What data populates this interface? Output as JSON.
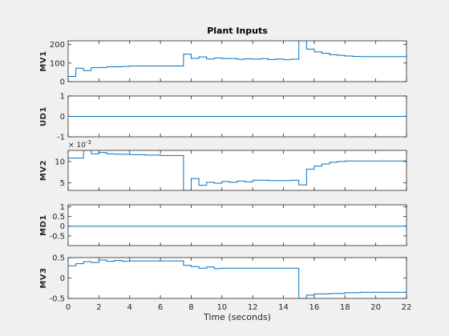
{
  "figure": {
    "background": "#f0f0f0",
    "axes_background": "#ffffff",
    "line_color": "#0072bd",
    "axis_color": "#262626"
  },
  "chart_data": [
    {
      "type": "line",
      "ylabel": "MV1",
      "title": "Plant Inputs",
      "xlim": [
        0,
        22
      ],
      "ylim": [
        0,
        220
      ],
      "yticks": [
        0,
        100,
        200
      ],
      "ytick_labels": [
        "0",
        "100",
        "200"
      ],
      "step": true,
      "series": [
        {
          "x": [
            0,
            0.5,
            1,
            1.5,
            2,
            2.5,
            3,
            3.5,
            4,
            7.5,
            8,
            8.5,
            9,
            9.5,
            10,
            10.5,
            11,
            11.5,
            12,
            12.5,
            13,
            13.5,
            14,
            14.5,
            15,
            15.5,
            16,
            16.5,
            17,
            17.5,
            18,
            18.5,
            19,
            22
          ],
          "y": [
            28,
            72,
            60,
            75,
            76,
            79,
            80,
            82,
            84,
            148,
            125,
            133,
            122,
            127,
            124,
            124,
            120,
            123,
            121,
            124,
            119,
            122,
            118,
            121,
            225,
            175,
            160,
            153,
            145,
            142,
            138,
            136,
            135,
            135
          ]
        }
      ]
    },
    {
      "type": "line",
      "ylabel": "UD1",
      "xlim": [
        0,
        22
      ],
      "ylim": [
        -1,
        1
      ],
      "yticks": [
        -1,
        0,
        1
      ],
      "ytick_labels": [
        "-1",
        "0",
        "1"
      ],
      "step": true,
      "series": [
        {
          "x": [
            0,
            22
          ],
          "y": [
            0,
            0
          ]
        }
      ]
    },
    {
      "type": "line",
      "ylabel": "MV2",
      "multiplier_base": "× 10",
      "multiplier_exp": "-3",
      "xlim": [
        0,
        22
      ],
      "ylim": [
        3.2,
        12.6
      ],
      "yticks": [
        5,
        10
      ],
      "ytick_labels": [
        "5",
        "10"
      ],
      "step": true,
      "series": [
        {
          "x": [
            0,
            1,
            1.5,
            2,
            2.5,
            3,
            4,
            5,
            6,
            7.5,
            8,
            8.5,
            9,
            9.5,
            10,
            10.5,
            11,
            11.5,
            12,
            13,
            14,
            14.5,
            15,
            15.5,
            16,
            16.5,
            17,
            17.5,
            18,
            22
          ],
          "y": [
            10.8,
            12.6,
            11.8,
            12.1,
            11.8,
            11.7,
            11.6,
            11.5,
            11.4,
            3.2,
            6.0,
            4.4,
            5.1,
            4.9,
            5.3,
            5.1,
            5.4,
            5.2,
            5.6,
            5.5,
            5.5,
            5.6,
            4.5,
            8.2,
            8.9,
            9.4,
            9.8,
            10.0,
            10.1,
            10.1
          ]
        }
      ]
    },
    {
      "type": "line",
      "ylabel": "MD1",
      "xlim": [
        0,
        22
      ],
      "ylim": [
        -1,
        1.1
      ],
      "yticks": [
        -0.5,
        0,
        0.5,
        1
      ],
      "ytick_labels": [
        "-0.5",
        "0",
        "0.5",
        "1"
      ],
      "step": true,
      "series": [
        {
          "x": [
            0,
            22
          ],
          "y": [
            0,
            0
          ]
        }
      ]
    },
    {
      "type": "line",
      "ylabel": "MV3",
      "xlabel": "Time (seconds)",
      "xlim": [
        0,
        22
      ],
      "xticks": [
        0,
        2,
        4,
        6,
        8,
        10,
        12,
        14,
        16,
        18,
        20,
        22
      ],
      "xtick_labels": [
        "0",
        "2",
        "4",
        "6",
        "8",
        "10",
        "12",
        "14",
        "16",
        "18",
        "20",
        "22"
      ],
      "ylim": [
        -0.5,
        0.5
      ],
      "yticks": [
        -0.5,
        0,
        0.5
      ],
      "ytick_labels": [
        "-0.5",
        "0",
        "0.5"
      ],
      "step": true,
      "series": [
        {
          "x": [
            0,
            0.5,
            1,
            1.5,
            2,
            2.5,
            3,
            3.5,
            4,
            7.5,
            8,
            8.5,
            9,
            9.5,
            10,
            15,
            15.5,
            16,
            17,
            18,
            19,
            22
          ],
          "y": [
            0.3,
            0.35,
            0.4,
            0.38,
            0.44,
            0.41,
            0.43,
            0.41,
            0.42,
            0.31,
            0.28,
            0.24,
            0.27,
            0.23,
            0.24,
            -0.5,
            -0.42,
            -0.39,
            -0.38,
            -0.36,
            -0.35,
            -0.35
          ]
        }
      ]
    }
  ]
}
